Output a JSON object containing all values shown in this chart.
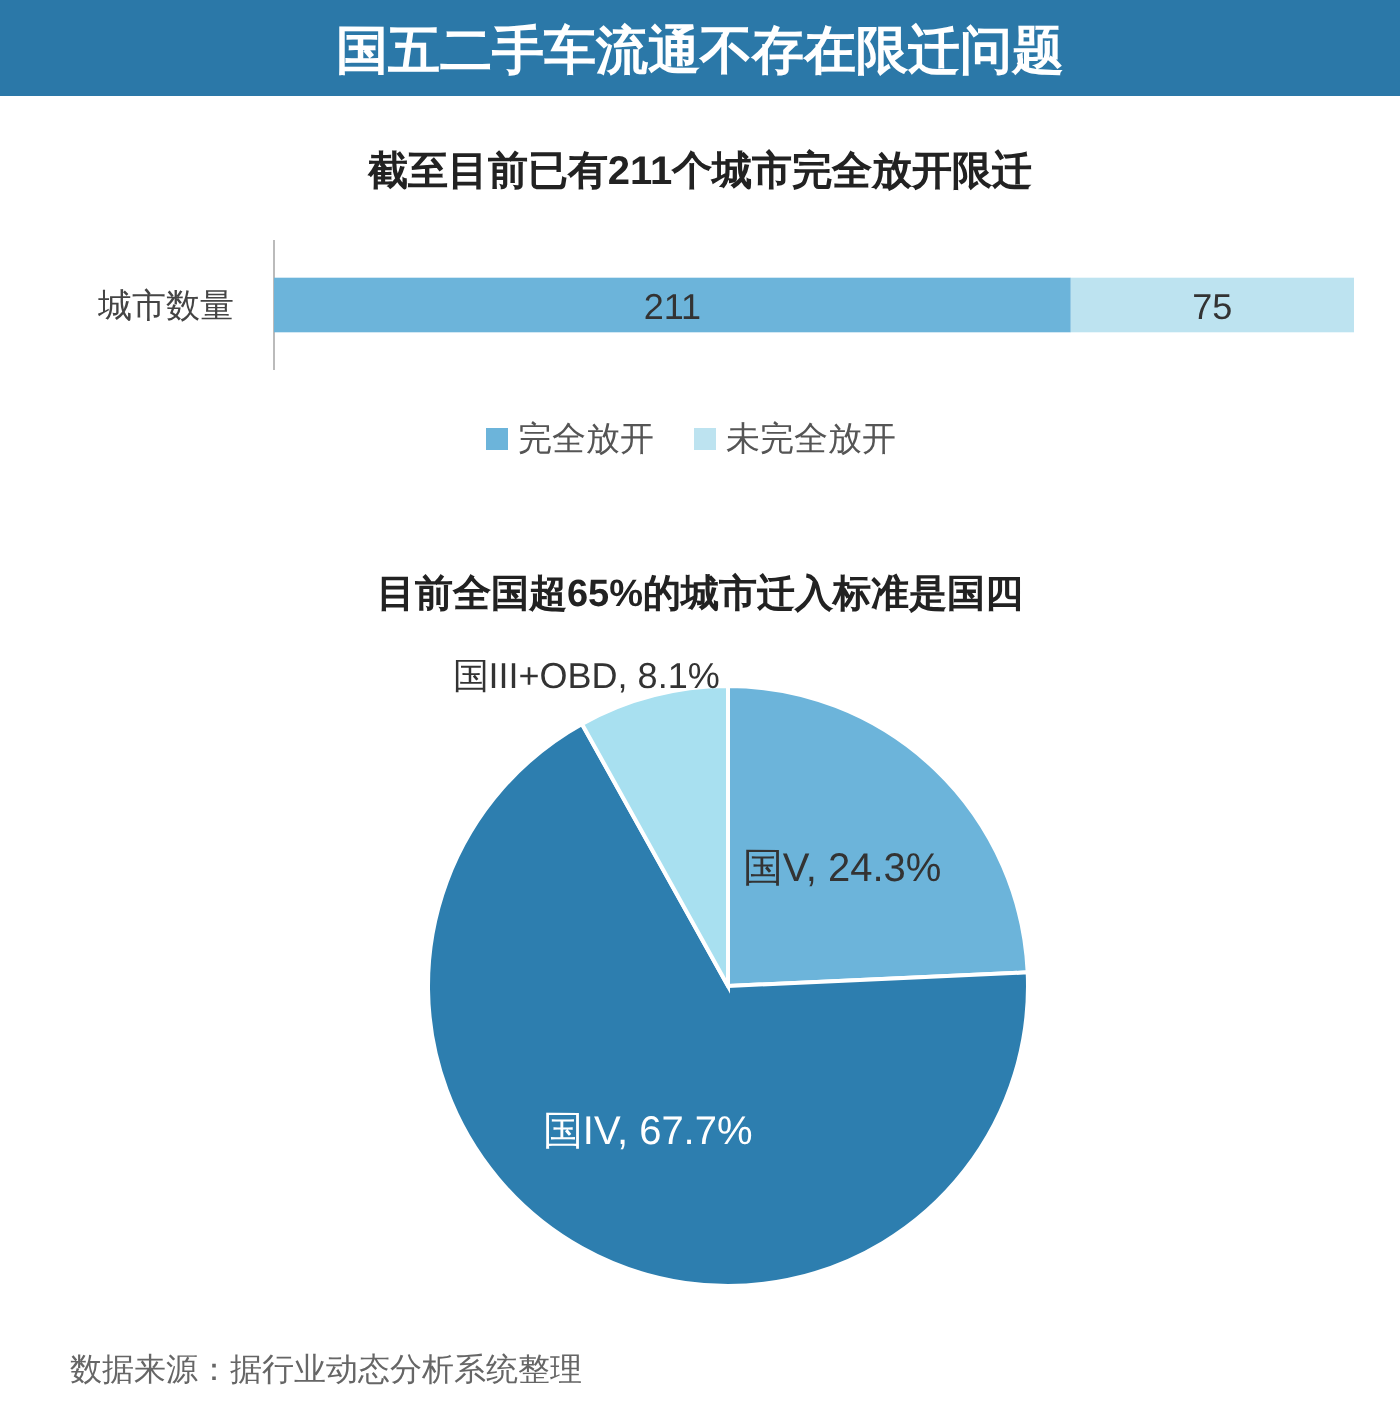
{
  "chart_data": [
    {
      "type": "bar",
      "title": "国五二手车流通不存在限迁问题",
      "subtitle": "截至目前已有211个城市完全放开限迁",
      "orientation": "horizontal",
      "stacked": true,
      "categories": [
        "城市数量"
      ],
      "series": [
        {
          "name": "完全放开",
          "color": "#6cb4da",
          "values": [
            211
          ]
        },
        {
          "name": "未完全放开",
          "color": "#bde3f0",
          "values": [
            75
          ]
        }
      ],
      "data_labels": true,
      "legend": "bottom"
    },
    {
      "type": "pie",
      "title": "目前全国超65%的城市迁入标准是国四",
      "categories": [
        "国V",
        "国IV",
        "国III+OBD"
      ],
      "values": [
        24.3,
        67.7,
        8.1
      ],
      "colors": [
        "#6cb4da",
        "#2d7eaf",
        "#a8e0f0"
      ],
      "value_labels": [
        "24.3%",
        "67.7%",
        "8.1%"
      ],
      "annotations": [
        "数据来源：据行业动态分析系统整理"
      ]
    }
  ]
}
